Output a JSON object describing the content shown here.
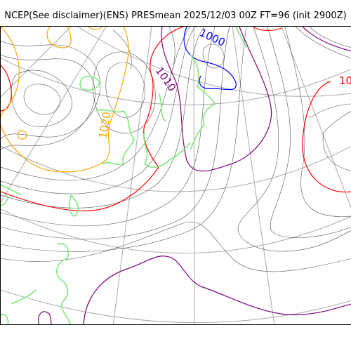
{
  "title": "NCEP(See disclaimer)(ENS) PRESmean 2025/12/03 00Z FT=96 (init 2900Z)",
  "labels": {
    "isobar_1000": "1000",
    "isobar_1010": "1010",
    "isobar_1020": "1020",
    "isobar_10_partial": "10"
  },
  "colors": {
    "isobar_thin": "#555555",
    "isobar_1000": "#0000ff",
    "isobar_1010": "#800080",
    "isobar_1020": "#ff0000",
    "isobar_1030": "#ffa500",
    "coastline": "#7ee87e",
    "graticule": "#aaaaaa"
  }
}
